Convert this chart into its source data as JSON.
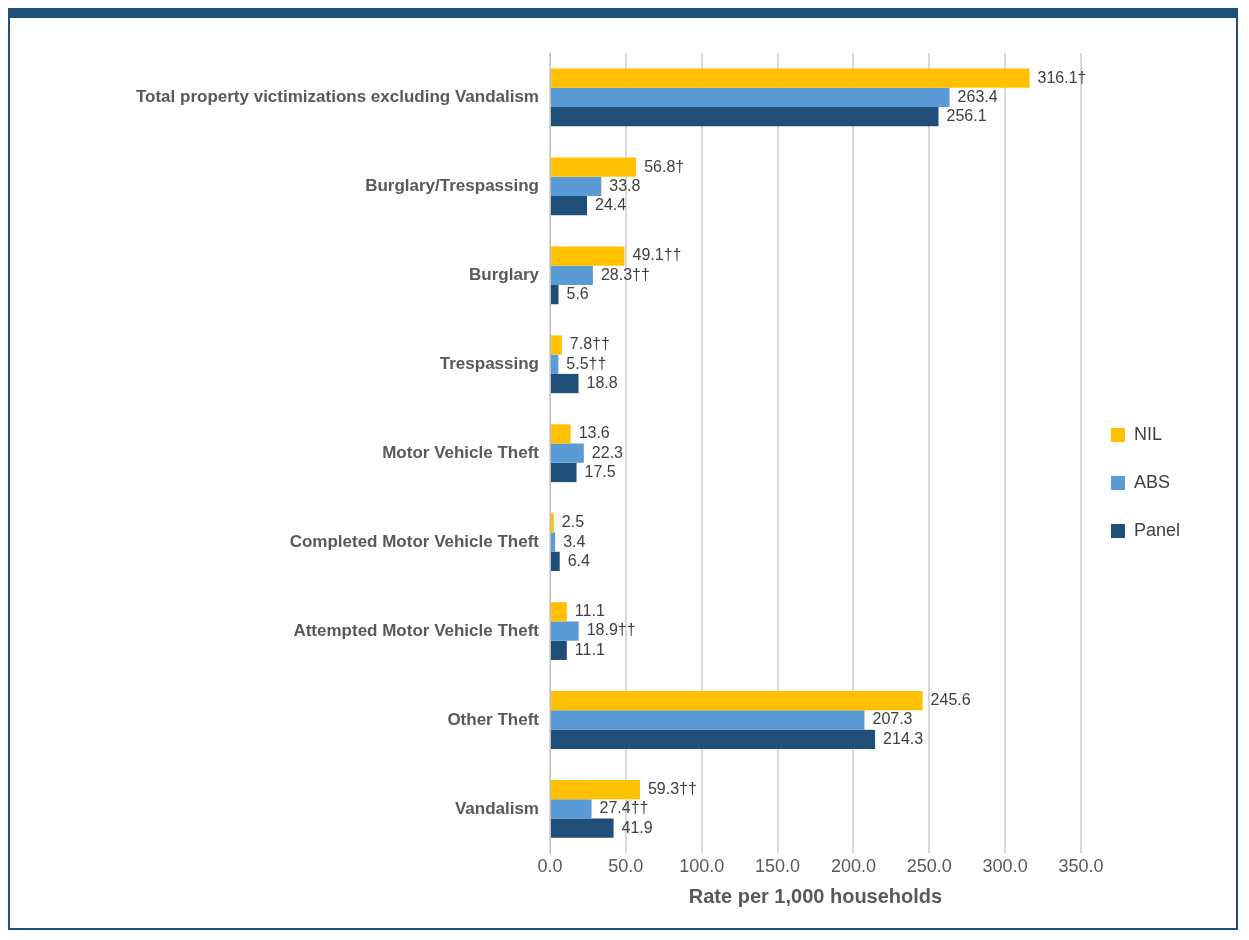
{
  "chart_data": {
    "type": "bar",
    "orientation": "horizontal",
    "xlabel": "Rate per 1,000 households",
    "categories": [
      "Total property victimizations excluding Vandalism",
      "Burglary/Trespassing",
      "Burglary",
      "Trespassing",
      "Motor Vehicle Theft",
      "Completed Motor Vehicle Theft",
      "Attempted Motor Vehicle Theft",
      "Other Theft",
      "Vandalism"
    ],
    "series": [
      {
        "name": "NIL",
        "color": "#ffc000",
        "values": [
          316.1,
          56.8,
          49.1,
          7.8,
          13.6,
          2.5,
          11.1,
          245.6,
          59.3
        ],
        "value_labels": [
          "316.1†",
          "56.8†",
          "49.1††",
          "7.8††",
          "13.6",
          "2.5",
          "11.1",
          "245.6",
          "59.3††"
        ]
      },
      {
        "name": "ABS",
        "color": "#5b9bd5",
        "values": [
          263.4,
          33.8,
          28.3,
          5.5,
          22.3,
          3.4,
          18.9,
          207.3,
          27.4
        ],
        "value_labels": [
          "263.4",
          "33.8",
          "28.3††",
          "5.5††",
          "22.3",
          "3.4",
          "18.9††",
          "207.3",
          "27.4††"
        ]
      },
      {
        "name": "Panel",
        "color": "#1f4e79",
        "values": [
          256.1,
          24.4,
          5.6,
          18.8,
          17.5,
          6.4,
          11.1,
          214.3,
          41.9
        ],
        "value_labels": [
          "256.1",
          "24.4",
          "5.6",
          "18.8",
          "17.5",
          "6.4",
          "11.1",
          "214.3",
          "41.9"
        ]
      }
    ],
    "xlim": [
      0,
      350
    ],
    "xticks": [
      {
        "value": 0,
        "label": "0.0"
      },
      {
        "value": 50,
        "label": "50.0"
      },
      {
        "value": 100,
        "label": "100.0"
      },
      {
        "value": 150,
        "label": "150.0"
      },
      {
        "value": 200,
        "label": "200.0"
      },
      {
        "value": 250,
        "label": "250.0"
      },
      {
        "value": 300,
        "label": "300.0"
      },
      {
        "value": 350,
        "label": "350.0"
      }
    ],
    "grid": "x",
    "legend": "right"
  }
}
